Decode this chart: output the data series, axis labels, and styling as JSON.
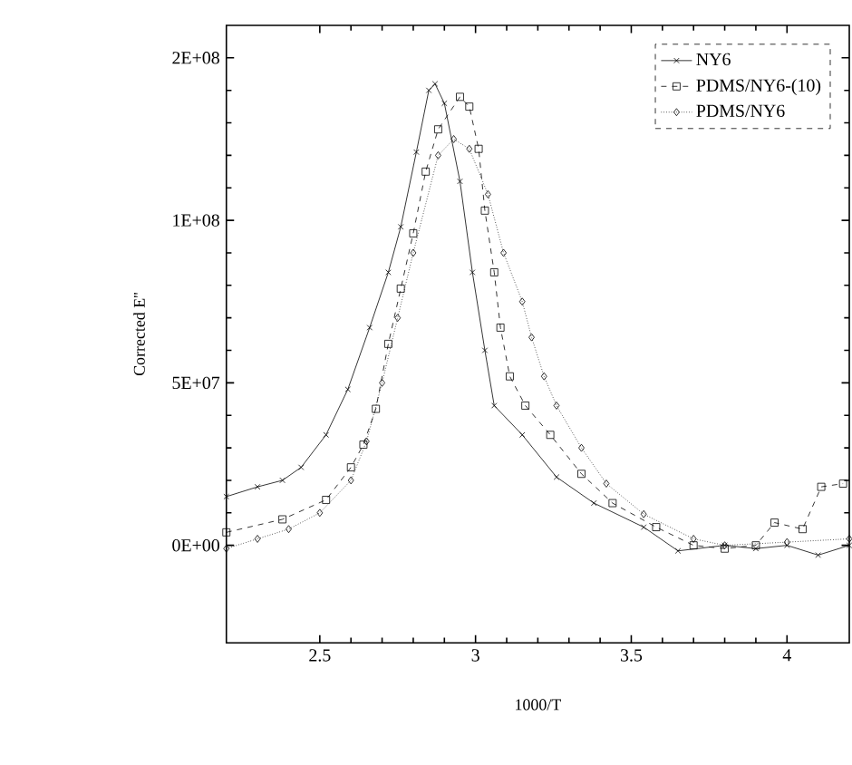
{
  "chart_data": {
    "type": "line",
    "xlabel": "1000/T",
    "ylabel": "Corrected E''",
    "xlim": [
      2.2,
      4.2
    ],
    "xticks": [
      2.5,
      3,
      3.5,
      4
    ],
    "ylim": [
      -30000000,
      160000000
    ],
    "yticks": [
      {
        "value": 0,
        "label": "0E+00"
      },
      {
        "value": 50000000,
        "label": "5E+07"
      },
      {
        "value": 100000000,
        "label": "1E+08"
      },
      {
        "value": 150000000,
        "label": "2E+08"
      }
    ],
    "grid": false,
    "legend": "top right",
    "series": [
      {
        "name": "NY6",
        "color": "#000000",
        "marker": "cross",
        "line_style": "solid",
        "x": [
          2.2,
          2.3,
          2.38,
          2.44,
          2.52,
          2.59,
          2.66,
          2.72,
          2.76,
          2.81,
          2.85,
          2.87,
          2.9,
          2.95,
          2.99,
          3.03,
          3.06,
          3.15,
          3.26,
          3.38,
          3.54,
          3.65,
          3.8,
          3.9,
          4.0,
          4.1,
          4.2
        ],
        "values": [
          15000000,
          18000000,
          20000000,
          24000000,
          34000000,
          48000000,
          67000000,
          84000000,
          98000000,
          121000000,
          140000000,
          142000000,
          136000000,
          112000000,
          84000000,
          60000000,
          43000000,
          34000000,
          21000000,
          13000000,
          5600000,
          -1700000,
          0,
          -1000000,
          0,
          -3000000,
          0
        ]
      },
      {
        "name": "PDMS/NY6-(10)",
        "color": "#000000",
        "marker": "square",
        "line_style": "dashed",
        "x": [
          2.2,
          2.38,
          2.52,
          2.6,
          2.64,
          2.68,
          2.72,
          2.76,
          2.8,
          2.84,
          2.88,
          2.95,
          2.98,
          3.01,
          3.03,
          3.06,
          3.08,
          3.11,
          3.16,
          3.24,
          3.34,
          3.44,
          3.58,
          3.7,
          3.8,
          3.9,
          3.96,
          4.05,
          4.11,
          4.18
        ],
        "values": [
          4000000,
          8000000,
          14000000,
          24000000,
          31000000,
          42000000,
          62000000,
          79000000,
          96000000,
          115000000,
          128000000,
          138000000,
          135000000,
          122000000,
          103000000,
          84000000,
          67000000,
          52000000,
          43000000,
          34000000,
          22000000,
          13000000,
          5600000,
          0,
          -1000000,
          0,
          7000000,
          5000000,
          18000000,
          19000000
        ]
      },
      {
        "name": "PDMS/NY6",
        "color": "#000000",
        "marker": "diamond",
        "line_style": "dotted",
        "x": [
          2.2,
          2.3,
          2.4,
          2.5,
          2.6,
          2.65,
          2.7,
          2.75,
          2.8,
          2.88,
          2.93,
          2.98,
          3.04,
          3.09,
          3.15,
          3.18,
          3.22,
          3.26,
          3.34,
          3.42,
          3.54,
          3.7,
          3.8,
          4.0,
          4.2
        ],
        "values": [
          -1000000,
          2000000,
          5000000,
          10000000,
          20000000,
          32000000,
          50000000,
          70000000,
          90000000,
          120000000,
          125000000,
          122000000,
          108000000,
          90000000,
          75000000,
          64000000,
          52000000,
          43000000,
          30000000,
          19000000,
          9600000,
          2000000,
          0,
          1000000,
          2000000
        ]
      }
    ]
  }
}
